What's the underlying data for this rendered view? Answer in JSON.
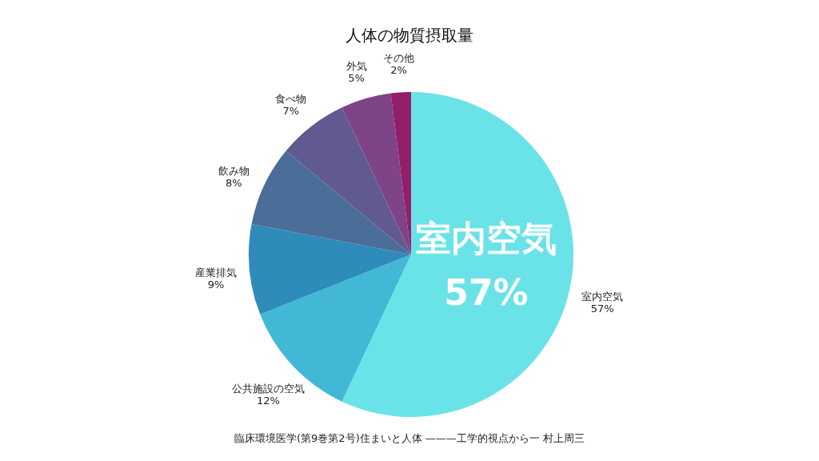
{
  "chart_data": {
    "type": "pie",
    "title": "人体の物質摂取量",
    "categories": [
      "室内空気",
      "公共施設の空気",
      "産業排気",
      "飲み物",
      "食べ物",
      "外気",
      "その他"
    ],
    "values": [
      57,
      12,
      9,
      8,
      7,
      5,
      2
    ],
    "colors": [
      "#6ae3e8",
      "#42b8d6",
      "#2e8bba",
      "#4a6e98",
      "#615a91",
      "#7e4487",
      "#921f6a"
    ],
    "value_labels": [
      "57%",
      "12%",
      "9%",
      "8%",
      "7%",
      "5%",
      "2%"
    ],
    "annotations": [
      "室内空気",
      "57%",
      "臨床環境医学(第9巻第2号)住まいと人体 ———工学的視点から一 村上周三"
    ]
  }
}
